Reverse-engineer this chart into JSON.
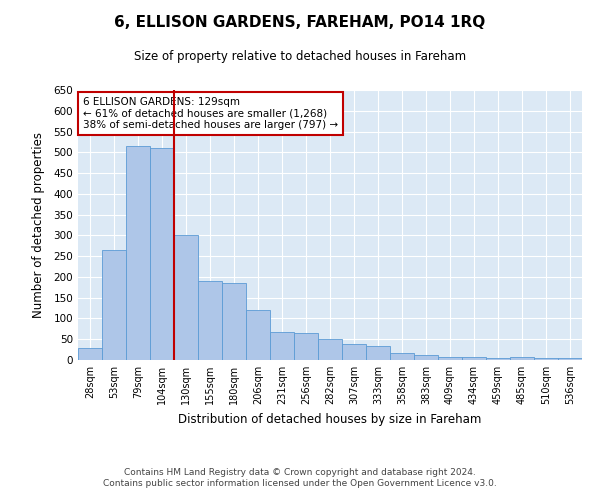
{
  "title": "6, ELLISON GARDENS, FAREHAM, PO14 1RQ",
  "subtitle": "Size of property relative to detached houses in Fareham",
  "xlabel": "Distribution of detached houses by size in Fareham",
  "ylabel": "Number of detached properties",
  "bar_color": "#aec6e8",
  "bar_edge_color": "#5b9bd5",
  "background_color": "#dce9f5",
  "grid_color": "#ffffff",
  "categories": [
    "28sqm",
    "53sqm",
    "79sqm",
    "104sqm",
    "130sqm",
    "155sqm",
    "180sqm",
    "206sqm",
    "231sqm",
    "256sqm",
    "282sqm",
    "307sqm",
    "333sqm",
    "358sqm",
    "383sqm",
    "409sqm",
    "434sqm",
    "459sqm",
    "485sqm",
    "510sqm",
    "536sqm"
  ],
  "values": [
    30,
    265,
    515,
    510,
    300,
    190,
    185,
    120,
    68,
    65,
    50,
    38,
    33,
    18,
    12,
    8,
    8,
    4,
    8,
    4,
    4
  ],
  "ylim": [
    0,
    650
  ],
  "yticks": [
    0,
    50,
    100,
    150,
    200,
    250,
    300,
    350,
    400,
    450,
    500,
    550,
    600,
    650
  ],
  "property_bin_index": 4,
  "red_line_color": "#c00000",
  "annotation_line1": "6 ELLISON GARDENS: 129sqm",
  "annotation_line2": "← 61% of detached houses are smaller (1,268)",
  "annotation_line3": "38% of semi-detached houses are larger (797) →",
  "annotation_box_color": "#ffffff",
  "annotation_box_edge": "#c00000",
  "footer_line1": "Contains HM Land Registry data © Crown copyright and database right 2024.",
  "footer_line2": "Contains public sector information licensed under the Open Government Licence v3.0."
}
